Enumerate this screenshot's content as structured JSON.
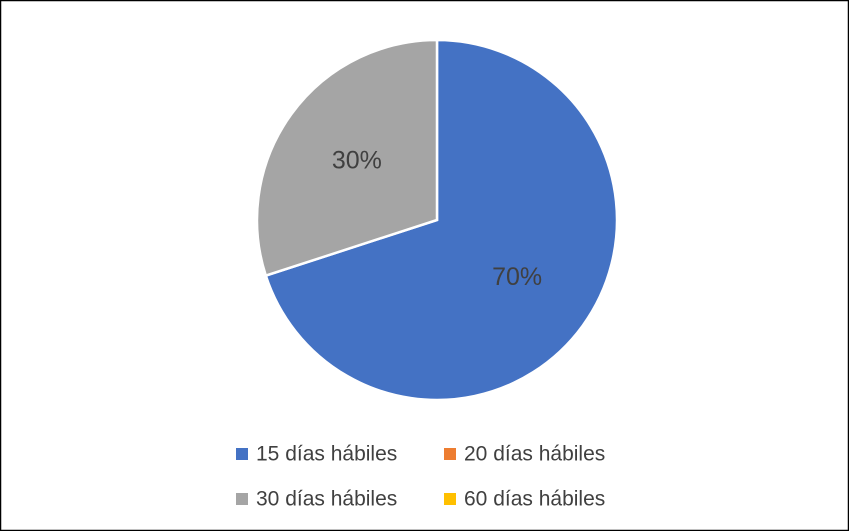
{
  "chart_data": {
    "type": "pie",
    "categories": [
      "15 días hábiles",
      "20 días hábiles",
      "30 días hábiles",
      "60 días hábiles"
    ],
    "values": [
      70,
      0,
      30,
      0
    ],
    "value_labels": [
      "70%",
      null,
      "30%",
      null
    ],
    "colors": [
      "#4472c4",
      "#ed7d31",
      "#a5a5a5",
      "#ffc000"
    ],
    "legend": "bottom"
  }
}
